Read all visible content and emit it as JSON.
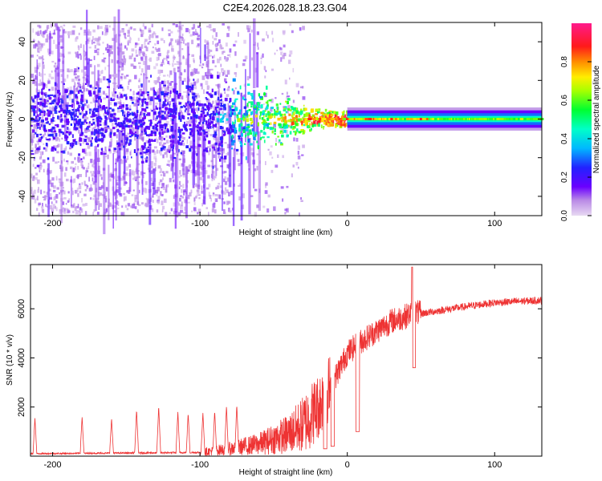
{
  "title": "C2E4.2026.028.18.23.G04",
  "chart_data": [
    {
      "type": "heatmap",
      "name": "spectrogram",
      "xlabel": "Height of straight line (km)",
      "ylabel": "Frequency (Hz)",
      "xlim": [
        -215,
        132
      ],
      "ylim": [
        -50,
        50
      ],
      "xticks": [
        -200,
        -100,
        0,
        100
      ],
      "xtick_labels": [
        "-200",
        "-100",
        "0",
        "100"
      ],
      "yticks": [
        -40,
        -20,
        0,
        20,
        40
      ],
      "ytick_labels": [
        "-40",
        "-20",
        "0",
        "20",
        "40"
      ],
      "colorbar": {
        "label": "Normalized spectral amplitude",
        "range": [
          0,
          1
        ],
        "ticks": [
          0.0,
          0.2,
          0.4,
          0.6,
          0.8
        ],
        "tick_labels": [
          "0.0",
          "0.2",
          "0.4",
          "0.6",
          "0.8"
        ],
        "colormap": "rainbow (magenta→blue→cyan→green→yellow→red→pink)"
      },
      "description_features": {
        "noise_region_x": [
          -215,
          -80
        ],
        "transition_region_x": [
          -80,
          0
        ],
        "clean_carrier_region_x": [
          0,
          132
        ],
        "carrier_frequency": 0
      }
    },
    {
      "type": "line",
      "name": "snr",
      "xlabel": "Height of straight line (km)",
      "ylabel": "SNR (10 * v/v)",
      "xlim": [
        -215,
        132
      ],
      "ylim": [
        0,
        7800
      ],
      "xticks": [
        -200,
        -100,
        0,
        100
      ],
      "xtick_labels": [
        "-200",
        "-100",
        "0",
        "100"
      ],
      "yticks": [
        2000,
        4000,
        6000
      ],
      "ytick_labels": [
        "2000",
        "4000",
        "6000"
      ],
      "color": "#ee3333",
      "trend_points": {
        "x": [
          -215,
          -100,
          -80,
          -60,
          -40,
          -30,
          -20,
          -15,
          -10,
          0,
          10,
          20,
          30,
          40,
          45,
          50,
          70,
          100,
          132
        ],
        "y": [
          100,
          150,
          300,
          500,
          900,
          1300,
          2000,
          2500,
          3000,
          4200,
          4700,
          5100,
          5500,
          5700,
          5900,
          5800,
          6000,
          6250,
          6350
        ]
      },
      "spikes": {
        "x": [
          -212,
          -180,
          -160,
          -143,
          -128,
          -115,
          -108,
          -98,
          -90,
          -82,
          -75
        ],
        "y": [
          1550,
          1600,
          1550,
          1900,
          2050,
          1800,
          1750,
          1800,
          1850,
          2050,
          2100
        ]
      },
      "dips": {
        "x": [
          -15,
          -10,
          7,
          45
        ],
        "y": [
          300,
          400,
          1000,
          3600
        ]
      },
      "peak": {
        "x": 44,
        "y": 7700
      }
    }
  ]
}
